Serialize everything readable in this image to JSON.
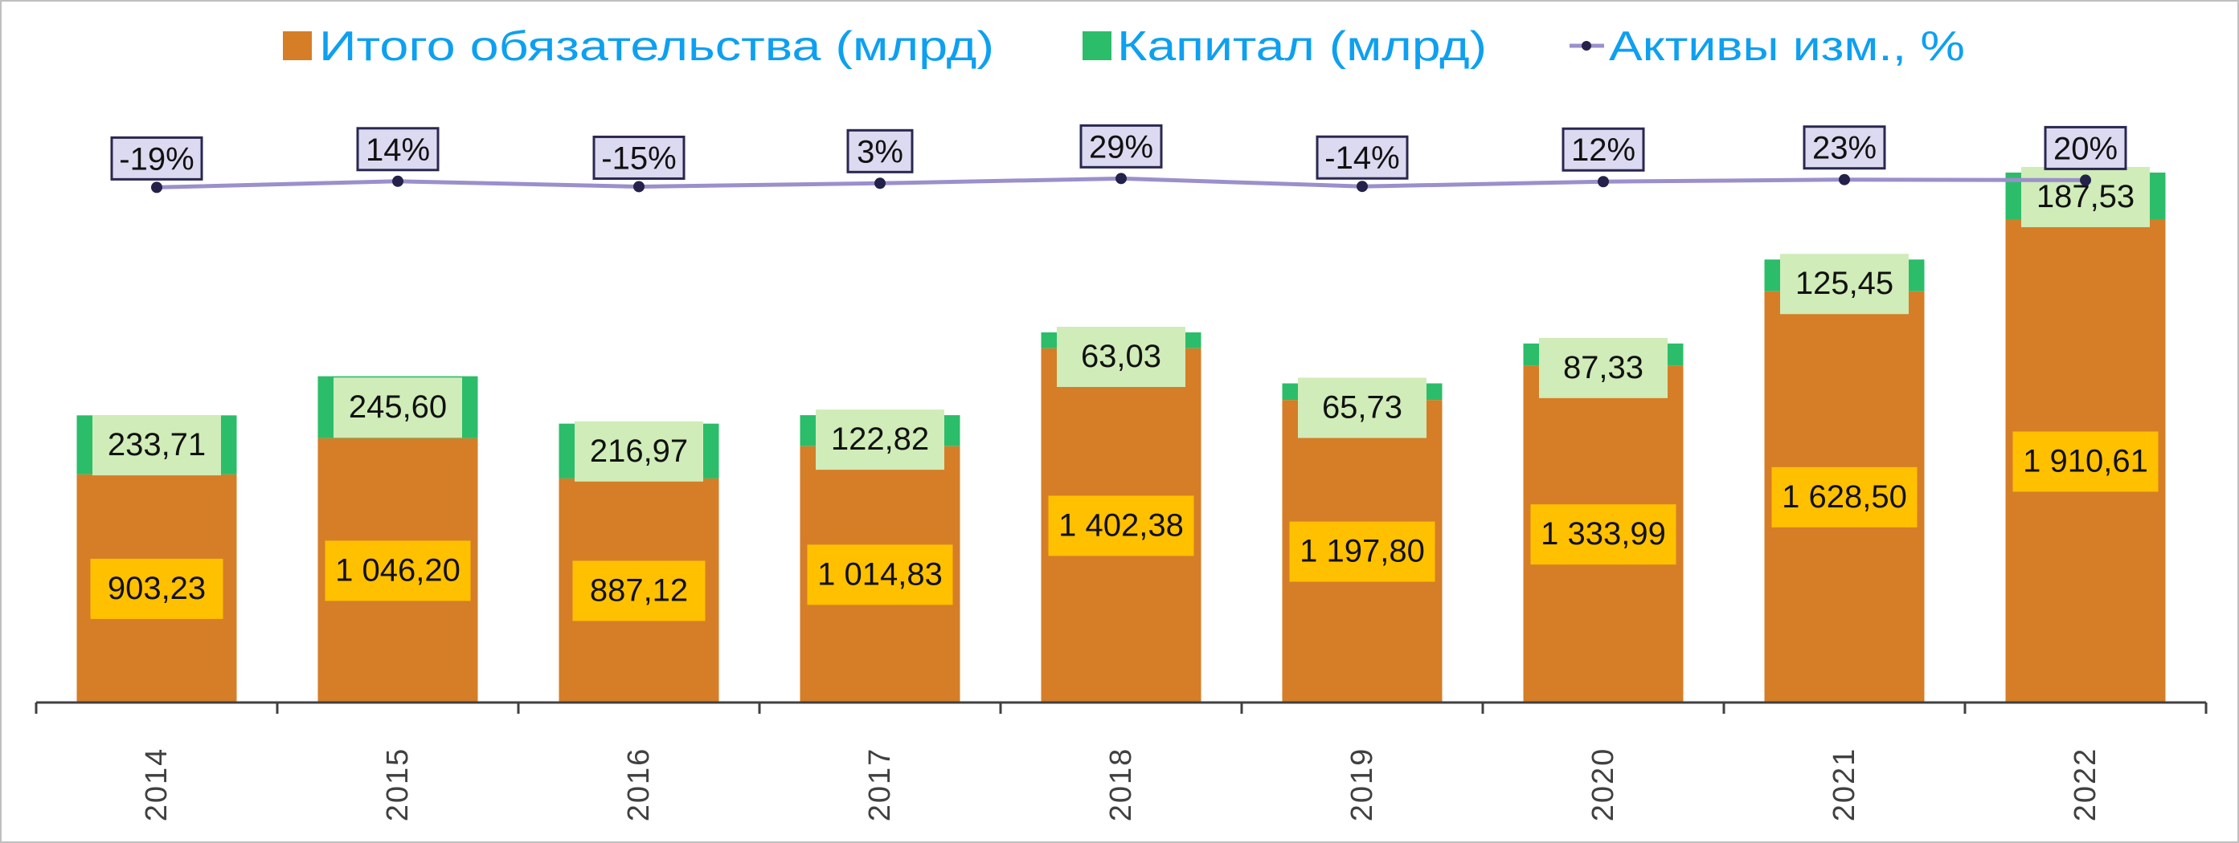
{
  "chart_data": {
    "type": "bar",
    "stacked": true,
    "title": "",
    "xlabel": "",
    "ylabel": "",
    "categories": [
      "2014",
      "2015",
      "2016",
      "2017",
      "2018",
      "2019",
      "2020",
      "2021",
      "2022"
    ],
    "series": [
      {
        "name": "Итого обязательства (млрд)",
        "type": "bar",
        "color": "#d57e27",
        "values": [
          903.23,
          1046.2,
          887.12,
          1014.83,
          1402.38,
          1197.8,
          1333.99,
          1628.5,
          1910.61
        ],
        "labels": [
          "903,23",
          "1 046,20",
          "887,12",
          "1 014,83",
          "1 402,38",
          "1 197,80",
          "1 333,99",
          "1 628,50",
          "1 910,61"
        ],
        "label_bg": "#ffc000"
      },
      {
        "name": "Капитал (млрд)",
        "type": "bar",
        "color": "#2bbd6a",
        "values": [
          233.71,
          245.6,
          216.97,
          122.82,
          63.03,
          65.73,
          87.33,
          125.45,
          187.53
        ],
        "labels": [
          "233,71",
          "245,60",
          "216,97",
          "122,82",
          "63,03",
          "65,73",
          "87,33",
          "125,45",
          "187,53"
        ],
        "label_bg": "#d0ecb8"
      },
      {
        "name": "Активы изм., %",
        "type": "line",
        "color": "#9b8fcc",
        "marker_color": "#24224a",
        "values": [
          -19,
          14,
          -15,
          3,
          29,
          -14,
          12,
          23,
          20
        ],
        "labels": [
          "-19%",
          "14%",
          "-15%",
          "3%",
          "29%",
          "-14%",
          "12%",
          "23%",
          "20%"
        ],
        "label_bg": "#dcdaf0",
        "label_border": "#2a2850"
      }
    ],
    "ylim": [
      0,
      2100
    ],
    "y2lim": [
      -400,
      60
    ],
    "grid": false,
    "legend_position": "top-center"
  }
}
